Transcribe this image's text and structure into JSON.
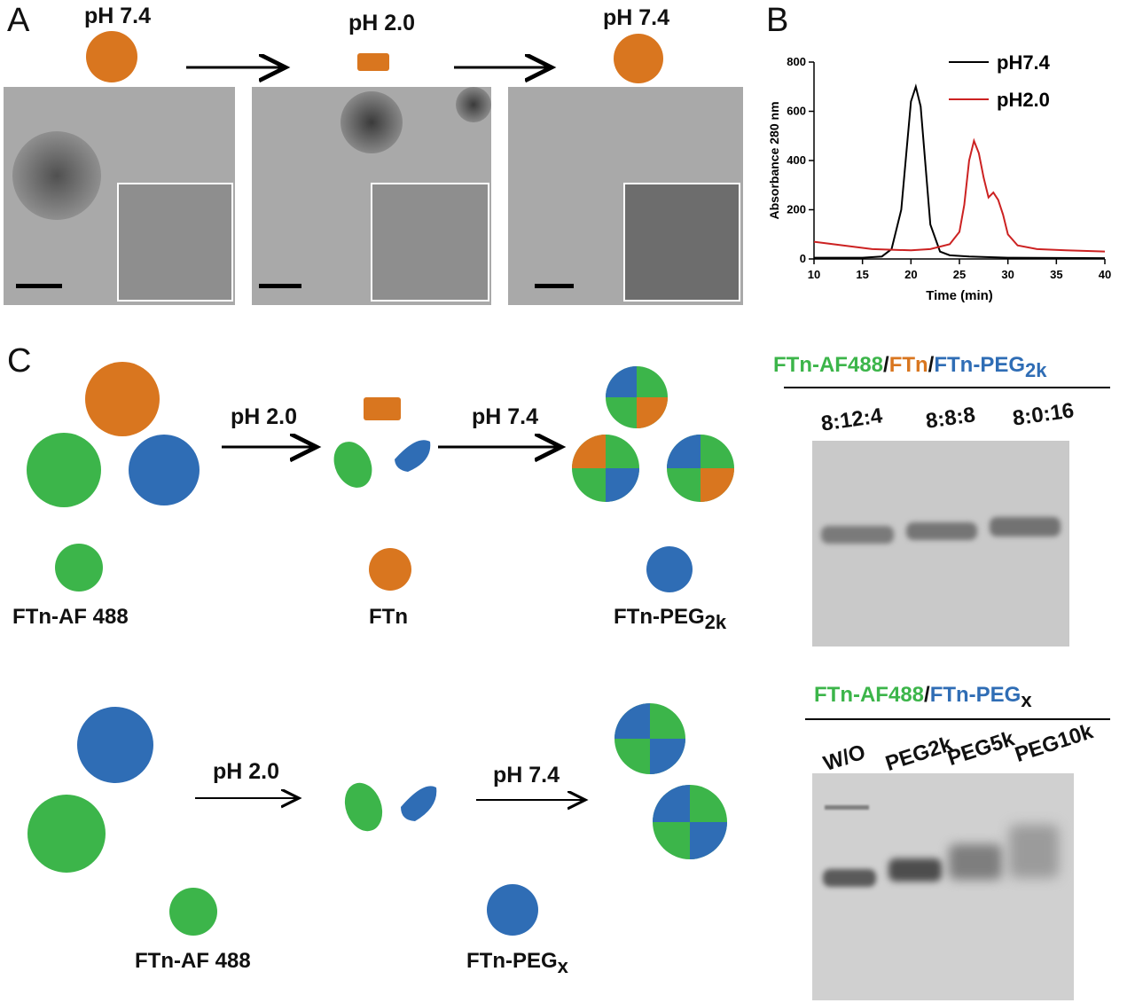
{
  "panels": {
    "a": "A",
    "b": "B",
    "c": "C"
  },
  "panel_a": {
    "labels": [
      "pH 7.4",
      "pH 2.0",
      "pH 7.4"
    ]
  },
  "chart_data": {
    "type": "line",
    "xlabel": "Time (min)",
    "ylabel": "Absorbance 280 nm",
    "xlim": [
      10,
      40
    ],
    "ylim": [
      0,
      800
    ],
    "xticks": [
      10,
      15,
      20,
      25,
      30,
      35,
      40
    ],
    "yticks": [
      0,
      200,
      400,
      600,
      800
    ],
    "legend_position": "top-right",
    "series": [
      {
        "name": "pH7.4",
        "color": "#000000",
        "x": [
          10,
          15,
          17,
          18,
          19,
          19.5,
          20,
          20.5,
          21,
          21.5,
          22,
          23,
          24,
          26,
          30,
          40
        ],
        "y": [
          5,
          5,
          10,
          40,
          200,
          420,
          640,
          700,
          620,
          380,
          140,
          30,
          15,
          10,
          5,
          3
        ]
      },
      {
        "name": "pH2.0",
        "color": "#cc2222",
        "x": [
          10,
          13,
          16,
          20,
          22,
          24,
          25,
          25.5,
          26,
          26.5,
          27,
          27.5,
          28,
          28.5,
          29,
          29.5,
          30,
          31,
          33,
          36,
          40
        ],
        "y": [
          70,
          55,
          40,
          35,
          40,
          60,
          110,
          220,
          400,
          480,
          430,
          330,
          250,
          270,
          240,
          180,
          100,
          55,
          40,
          35,
          30
        ]
      }
    ]
  },
  "panel_c": {
    "top": {
      "arrow1": "pH 2.0",
      "arrow2": "pH 7.4",
      "legend1": "FTn-AF 488",
      "legend2": "FTn",
      "legend3_main": "FTn-PEG",
      "legend3_sub": "2k"
    },
    "bottom": {
      "arrow1": "pH 2.0",
      "arrow2": "pH 7.4",
      "legend1": "FTn-AF 488",
      "legend2_main": "FTn-PEG",
      "legend2_sub": "x"
    },
    "gel1": {
      "title_parts": [
        "FTn-AF488",
        "/",
        "FTn",
        "/",
        "FTn-PEG",
        "2k"
      ],
      "lanes": [
        "8:12:4",
        "8:8:8",
        "8:0:16"
      ]
    },
    "gel2": {
      "title_parts": [
        "FTn-AF488",
        "/",
        "FTn-PEG",
        "x"
      ],
      "lanes": [
        "W/O",
        "PEG2k",
        "PEG5k",
        "PEG10k"
      ]
    }
  },
  "colors": {
    "orange": "#d9761f",
    "green": "#3cb54a",
    "blue": "#2f6db5",
    "red": "#cc2222"
  }
}
